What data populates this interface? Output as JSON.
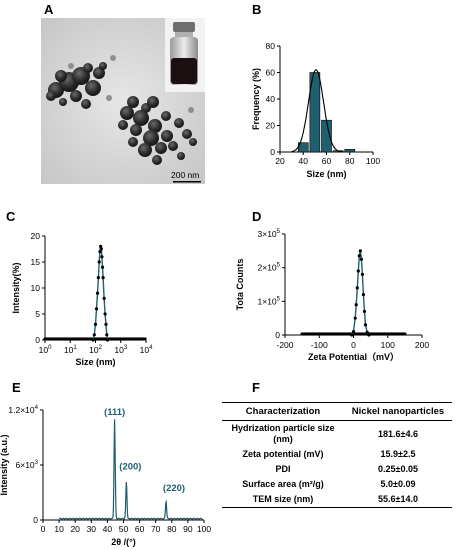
{
  "letters": {
    "a": "A",
    "b": "B",
    "c": "C",
    "d": "D",
    "e": "E",
    "f": "F"
  },
  "tem": {
    "scale_label": "200 nm"
  },
  "chart_data": [
    {
      "id": "B",
      "type": "bar",
      "x": [
        40,
        50,
        60,
        70,
        80
      ],
      "values": [
        7,
        60,
        24,
        1,
        2
      ],
      "fit": {
        "kind": "gaussian",
        "center": 51,
        "sigma": 6.5,
        "peak": 62
      },
      "xlabel": "Size (nm)",
      "ylabel": "Frequency (%)",
      "xlim": [
        20,
        100
      ],
      "ylim": [
        0,
        80
      ],
      "xticks": [
        "20",
        "40",
        "60",
        "80",
        "100"
      ],
      "yticks": [
        "0",
        "20",
        "40",
        "60",
        "80"
      ],
      "bar_color": "#1f5f6f"
    },
    {
      "id": "C",
      "type": "line",
      "x": [
        80,
        90,
        100,
        110,
        120,
        130,
        140,
        150,
        160,
        170,
        180,
        190,
        200,
        220,
        240,
        260,
        280,
        300
      ],
      "y": [
        0,
        1,
        3,
        6,
        9,
        12,
        15,
        17,
        18,
        17.5,
        16,
        14,
        12,
        8,
        5,
        3,
        1,
        0
      ],
      "xlabel": "Size (nm)",
      "ylabel": "Intensity(%)",
      "xscale": "log",
      "xlim": [
        1,
        10000
      ],
      "ylim": [
        0,
        20
      ],
      "xticks": [
        "10",
        "10",
        "10",
        "10",
        "10"
      ],
      "xtick_exp": [
        "0",
        "1",
        "2",
        "3",
        "4"
      ],
      "yticks": [
        "0",
        "5",
        "10",
        "15",
        "20"
      ],
      "line_color": "#1f5f6f"
    },
    {
      "id": "D",
      "type": "line",
      "x": [
        -5,
        0,
        5,
        8,
        11,
        14,
        17,
        20,
        23,
        26,
        29,
        32,
        35,
        40,
        45
      ],
      "y": [
        0,
        10000,
        50000,
        90000,
        140000,
        190000,
        235000,
        250000,
        225000,
        180000,
        120000,
        70000,
        30000,
        8000,
        0
      ],
      "xlabel": "Zeta Potential（mV）",
      "ylabel": "Tota Counts",
      "xlim": [
        -200,
        200
      ],
      "ylim": [
        0,
        300000
      ],
      "xticks": [
        "-200",
        "-100",
        "0",
        "100",
        "200"
      ],
      "yticks": [
        "0",
        "1×10",
        "2×10",
        "3×10"
      ],
      "ytick_exp": [
        "",
        "5",
        "5",
        "5"
      ],
      "line_color": "#1f5f6f"
    },
    {
      "id": "E",
      "type": "line",
      "peaks": [
        {
          "x": 44.5,
          "y": 11000,
          "label": "(111)"
        },
        {
          "x": 51.8,
          "y": 4200,
          "label": "(200)"
        },
        {
          "x": 76.4,
          "y": 2100,
          "label": "(220)"
        }
      ],
      "baseline": 150,
      "xlabel": "2θ /(°)",
      "ylabel": "Intensity (a.u.)",
      "xlim": [
        0,
        100
      ],
      "ylim": [
        0,
        12000
      ],
      "xticks": [
        "0",
        "10",
        "20",
        "30",
        "40",
        "50",
        "60",
        "70",
        "80",
        "90",
        "100"
      ],
      "yticks": [
        "0",
        "6×10",
        "1.2×10"
      ],
      "ytick_exp": [
        "",
        "3",
        "4"
      ],
      "line_color": "#1f5f6f"
    },
    {
      "id": "F",
      "type": "table",
      "columns": [
        "Characterization",
        "Nickel nanoparticles"
      ],
      "rows": [
        [
          "Hydrization particle size (nm)",
          "181.6±4.6"
        ],
        [
          "Zeta potential (mV)",
          "15.9±2.5"
        ],
        [
          "PDI",
          "0.25±0.05"
        ],
        [
          "Surface area (m²/g)",
          "5.0±0.09"
        ],
        [
          "TEM size (nm)",
          "55.6±14.0"
        ]
      ]
    }
  ]
}
